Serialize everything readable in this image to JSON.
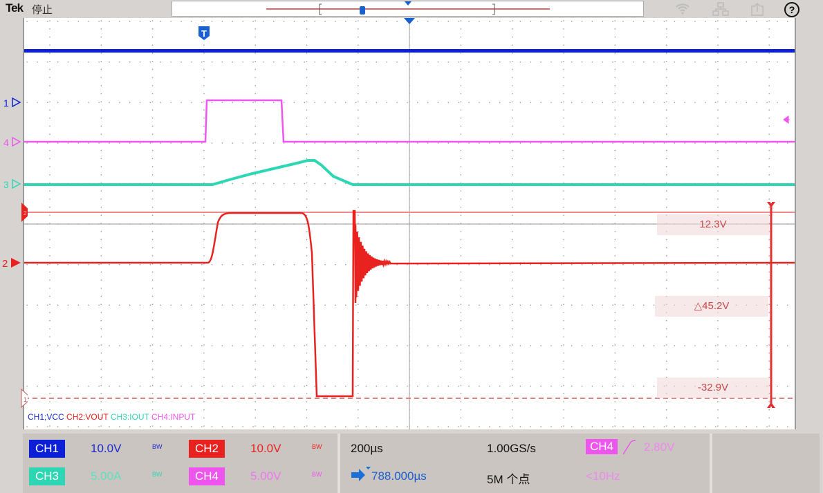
{
  "header": {
    "brand": "Tek",
    "state": "停止",
    "icons": [
      "wifi-icon",
      "network-icon",
      "export-icon",
      "help-icon"
    ],
    "help_glyph": "?"
  },
  "markers": {
    "ch1": "1",
    "ch2": "2",
    "ch3": "3",
    "ch4": "4",
    "trigger": "T",
    "cursor_a": "2",
    "cursor_b": "1"
  },
  "legend": {
    "ch1": "CH1;VCC",
    "ch2": "CH2:VOUT",
    "ch3": "CH3:IOUT",
    "ch4": "CH4:INPUT"
  },
  "cursors": {
    "top": "12.3V",
    "delta": "△45.2V",
    "bottom": "-32.9V"
  },
  "channels": [
    {
      "label": "CH1",
      "scale": "10.0V",
      "bw": "BW",
      "color": "#0a1fd6"
    },
    {
      "label": "CH2",
      "scale": "10.0V",
      "bw": "BW",
      "color": "#e8221e"
    },
    {
      "label": "CH3",
      "scale": "5.00A",
      "bw": "BW",
      "color": "#2fd6b4"
    },
    {
      "label": "CH4",
      "scale": "5.00V",
      "bw": "BW",
      "color": "#ee55ee"
    }
  ],
  "horizontal": {
    "scale": "200µs",
    "sample_rate": "1.00GS/s",
    "position": "788.000µs",
    "record": "5M 个点"
  },
  "trigger": {
    "source": "CH4",
    "slope": "rising",
    "level": "2.80V",
    "frequency": "<10Hz"
  }
}
